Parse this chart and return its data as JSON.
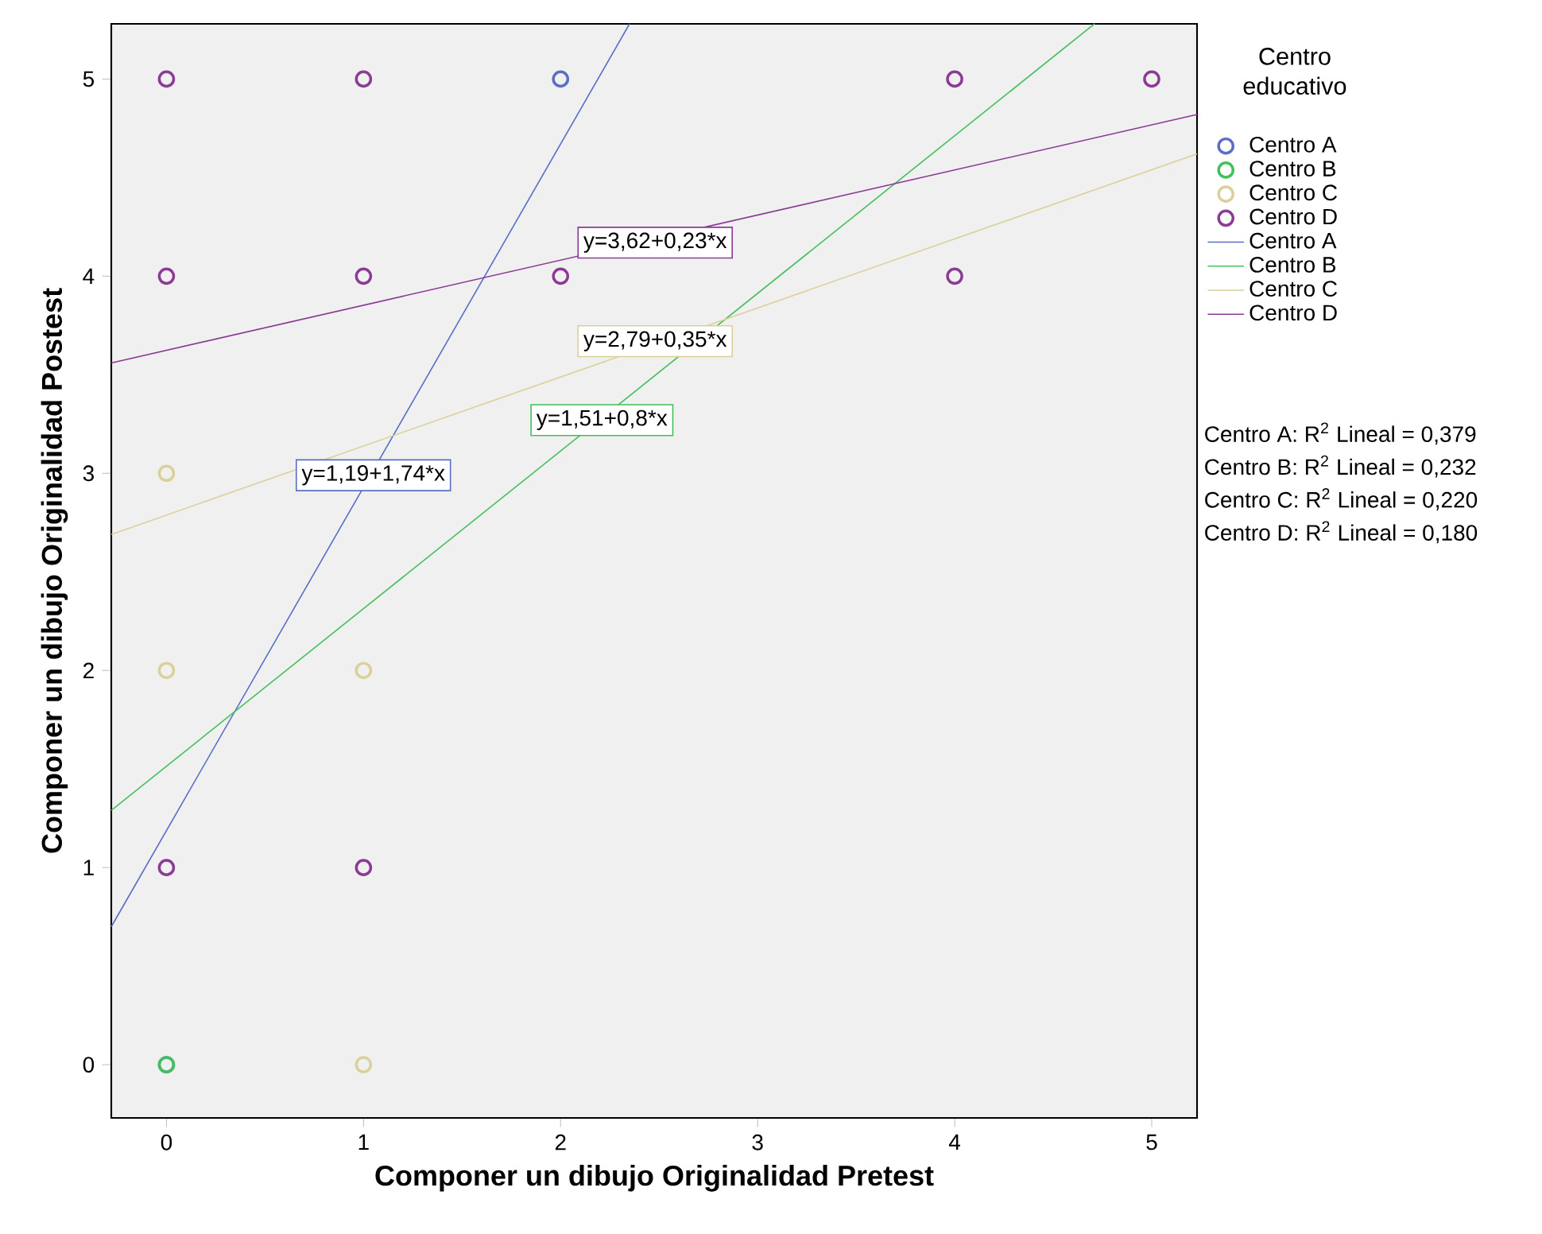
{
  "chart_data": {
    "type": "scatter",
    "xlabel": "Componer un dibujo Originalidad Pretest",
    "ylabel": "Componer un dibujo Originalidad Postest",
    "legend_title": "Centro educativo",
    "xlim": [
      -0.28,
      5.23
    ],
    "ylim": [
      -0.27,
      5.28
    ],
    "xticks": [
      0,
      1,
      2,
      3,
      4,
      5
    ],
    "yticks": [
      0,
      1,
      2,
      3,
      4,
      5
    ],
    "marker": "circle",
    "legend": "right",
    "series": [
      {
        "name": "Centro A",
        "color": "#5a6fc4",
        "x": [
          2,
          0
        ],
        "values": [
          5,
          0
        ]
      },
      {
        "name": "Centro B",
        "color": "#44c05a",
        "x": [
          0
        ],
        "values": [
          0
        ]
      },
      {
        "name": "Centro C",
        "color": "#d9d09a",
        "x": [
          0,
          0,
          1,
          1
        ],
        "values": [
          3,
          2,
          2,
          0
        ]
      },
      {
        "name": "Centro D",
        "color": "#8b3a96",
        "x": [
          0,
          1,
          0,
          1,
          2,
          4,
          4,
          5,
          0,
          1
        ],
        "values": [
          5,
          5,
          4,
          4,
          4,
          5,
          4,
          5,
          1,
          1
        ]
      },
      {
        "name": "Centro A",
        "type": "line",
        "marker": "none",
        "color": "#5a6fc4",
        "x": [
          -0.28,
          2.35
        ],
        "values": [
          0.7,
          5.28
        ]
      },
      {
        "name": "Centro B",
        "type": "line",
        "marker": "none",
        "color": "#44c05a",
        "x": [
          -0.28,
          4.71
        ],
        "values": [
          1.29,
          5.28
        ]
      },
      {
        "name": "Centro C",
        "type": "line",
        "marker": "none",
        "color": "#d9d09a",
        "x": [
          -0.28,
          5.23
        ],
        "values": [
          2.69,
          4.62
        ]
      },
      {
        "name": "Centro D",
        "type": "line",
        "marker": "none",
        "color": "#8b3a96",
        "x": [
          -0.28,
          5.23
        ],
        "values": [
          3.56,
          4.82
        ]
      }
    ],
    "annotations": [
      {
        "text": "y=1,19+1,74*x",
        "x": 1.05,
        "y": 2.99
      },
      {
        "text": "y=1,51+0,8*x",
        "x": 2.21,
        "y": 3.27
      },
      {
        "text": "y=2,79+0,35*x",
        "x": 2.48,
        "y": 3.67
      },
      {
        "text": "y=3,62+0,23*x",
        "x": 2.48,
        "y": 4.17
      },
      "Centro A: R$^{2}$ Lineal = 0,379",
      "Centro B: R$^{2}$ Lineal = 0,232",
      "Centro C: R$^{2}$ Lineal = 0,220",
      "Centro D: R$^{2}$ Lineal = 0,180"
    ]
  }
}
